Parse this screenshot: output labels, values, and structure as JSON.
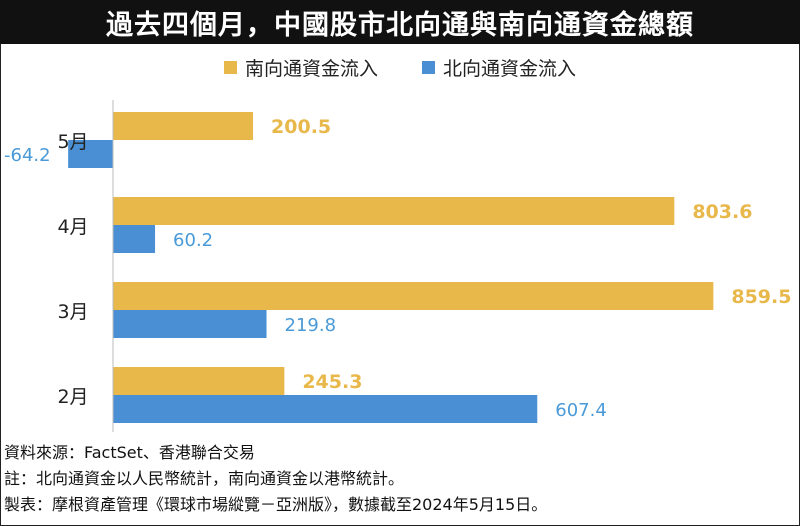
{
  "title": "過去四個月，中國股市北向通與南向通資金總額",
  "chart_data": {
    "type": "bar",
    "orientation": "horizontal",
    "categories": [
      "5月",
      "4月",
      "3月",
      "2月"
    ],
    "series": [
      {
        "name": "南向通資金流入",
        "color": "#E8B84A",
        "values": [
          200.5,
          803.6,
          859.5,
          245.3
        ]
      },
      {
        "name": "北向通資金流入",
        "color": "#4A8FD4",
        "values": [
          -64.2,
          60.2,
          219.8,
          607.4
        ]
      }
    ],
    "value_labels": {
      "south": [
        "200.5",
        "803.6",
        "859.5",
        "245.3"
      ],
      "north": [
        "-64.2",
        "60.2",
        "219.8",
        "607.4"
      ]
    },
    "label_colors": {
      "south": "#E8B84A",
      "north": "#4A9AD8"
    },
    "legend_position": "top-center",
    "grid": false
  },
  "notes": {
    "source": "資料來源：FactSet、香港聯合交易",
    "footnote": "註：北向通資金以人民幣統計，南向通資金以港幣統計。",
    "credit": "製表：摩根資產管理《環球市場縱覽－亞洲版》，數據截至2024年5月15日。"
  }
}
